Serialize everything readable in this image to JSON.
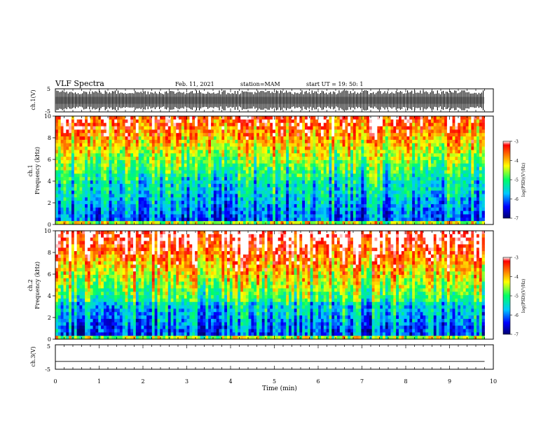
{
  "header": {
    "title": "VLF Spectra",
    "date": "Feb. 11, 2021",
    "station": "station=MAM",
    "start": "start UT =  19: 50: 1"
  },
  "chart_data": [
    {
      "type": "line",
      "panel": "ch1-waveform",
      "ylabel": "ch.1(V)",
      "ylim": [
        -5,
        5
      ],
      "yticks": [
        "5",
        "-5"
      ],
      "xlim": [
        0,
        10
      ],
      "description_values": "dense waveform saturating near ±4 V"
    },
    {
      "type": "heatmap",
      "panel": "ch1-spectrogram",
      "ylabel": "ch.1\nFrequency (kHz)",
      "ylabel_line1": "ch.1",
      "ylabel_line2": "Frequency (kHz)",
      "ylim": [
        0,
        10
      ],
      "yticks": [
        "0",
        "2",
        "4",
        "6",
        "8",
        "10"
      ],
      "xlim": [
        0,
        10
      ],
      "colorbar": {
        "label": "log(PSD)(V²/Hz)",
        "range": [
          -7,
          -3
        ],
        "ticks": [
          "-3",
          "-4",
          "-5",
          "-6",
          "-7"
        ]
      }
    },
    {
      "type": "heatmap",
      "panel": "ch2-spectrogram",
      "ylabel_line1": "ch.2",
      "ylabel_line2": "Frequency (kHz)",
      "ylim": [
        0,
        10
      ],
      "yticks": [
        "0",
        "2",
        "4",
        "6",
        "8",
        "10"
      ],
      "xlim": [
        0,
        10
      ],
      "colorbar": {
        "label": "log(PSD)(V²/Hz)",
        "range": [
          -7,
          -3
        ],
        "ticks": [
          "-3",
          "-4",
          "-5",
          "-6",
          "-7"
        ]
      }
    },
    {
      "type": "line",
      "panel": "ch3-waveform",
      "ylabel": "ch.3(V)",
      "ylim": [
        -5,
        5
      ],
      "yticks": [
        "5",
        "-5"
      ],
      "xlim": [
        0,
        10
      ],
      "x": [
        0,
        9.8
      ],
      "y": [
        -1.8,
        -1.8
      ]
    }
  ],
  "xaxis": {
    "label": "Time (min)",
    "ticks": [
      "0",
      "1",
      "2",
      "3",
      "4",
      "5",
      "6",
      "7",
      "8",
      "9",
      "10"
    ],
    "data_end": 9.8
  }
}
